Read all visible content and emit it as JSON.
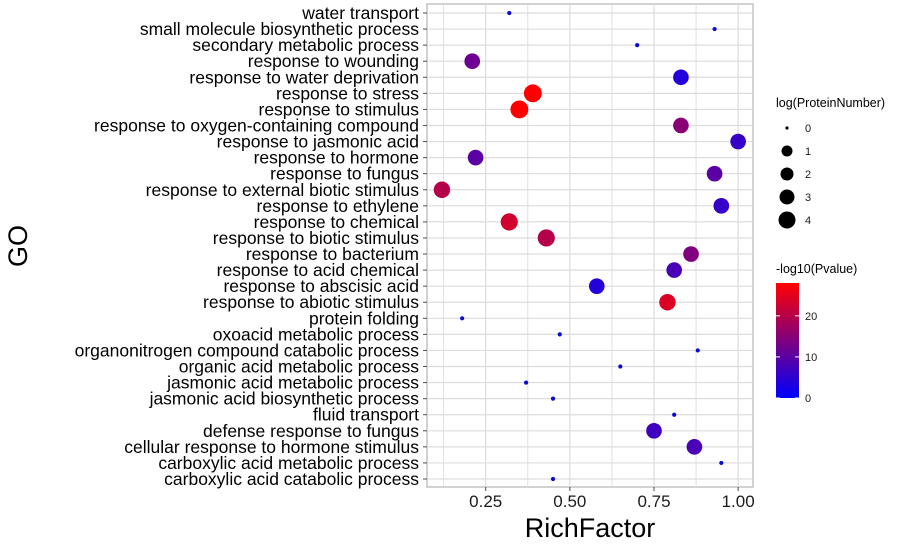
{
  "chart_data": {
    "type": "scatter",
    "title": "",
    "xlabel": "RichFactor",
    "ylabel": "GO",
    "xlim": [
      0.1,
      1.05
    ],
    "x_ticks": [
      0.25,
      0.5,
      0.75,
      1.0
    ],
    "x_tick_labels": [
      "0.25",
      "0.50",
      "0.75",
      "1.00"
    ],
    "grid": true,
    "categories": [
      "water transport",
      "small molecule biosynthetic process",
      "secondary metabolic process",
      "response to wounding",
      "response to water deprivation",
      "response to stress",
      "response to stimulus",
      "response to oxygen-containing compound",
      "response to jasmonic acid",
      "response to hormone",
      "response to fungus",
      "response to external biotic stimulus",
      "response to ethylene",
      "response to chemical",
      "response to biotic stimulus",
      "response to bacterium",
      "response to acid chemical",
      "response to abscisic acid",
      "response to abiotic stimulus",
      "protein folding",
      "oxoacid metabolic process",
      "organonitrogen compound catabolic process",
      "organic acid metabolic process",
      "jasmonic acid metabolic process",
      "jasmonic acid biosynthetic process",
      "fluid transport",
      "defense response to fungus",
      "cellular response to hormone stimulus",
      "carboxylic acid metabolic process",
      "carboxylic acid catabolic process"
    ],
    "series": [
      {
        "name": "RichFactor",
        "values": [
          0.32,
          0.93,
          0.7,
          0.21,
          0.83,
          0.39,
          0.35,
          0.83,
          1.0,
          0.22,
          0.93,
          0.12,
          0.95,
          0.32,
          0.43,
          0.86,
          0.81,
          0.58,
          0.79,
          0.18,
          0.47,
          0.88,
          0.65,
          0.37,
          0.45,
          0.81,
          0.75,
          0.87,
          0.95,
          0.45
        ]
      },
      {
        "name": "log(ProteinNumber)",
        "values": [
          0,
          0,
          0,
          2.5,
          2.5,
          4,
          4,
          2.5,
          2.5,
          2.5,
          2.5,
          3,
          2.5,
          3.5,
          3.5,
          2.5,
          2.5,
          2.5,
          3,
          0,
          0,
          0,
          0,
          0,
          0,
          0,
          2.5,
          2.5,
          0,
          0
        ]
      },
      {
        "name": "-log10(Pvalue)",
        "values": [
          1,
          1,
          1,
          12,
          4,
          28,
          28,
          15,
          6,
          10,
          10,
          20,
          6,
          23,
          20,
          14,
          8,
          4,
          24,
          1,
          1,
          1,
          1,
          1,
          1,
          1,
          7,
          8,
          1,
          1
        ]
      }
    ],
    "legends": {
      "size": {
        "title": "log(ProteinNumber)",
        "breaks": [
          "0",
          "1",
          "2",
          "3",
          "4"
        ],
        "position": "right"
      },
      "color": {
        "title": "-log10(Pvalue)",
        "breaks": [
          "0",
          "10",
          "20"
        ],
        "range": [
          0,
          28
        ],
        "low_color": "#0000FF",
        "high_color": "#FF0000",
        "position": "right"
      }
    }
  }
}
